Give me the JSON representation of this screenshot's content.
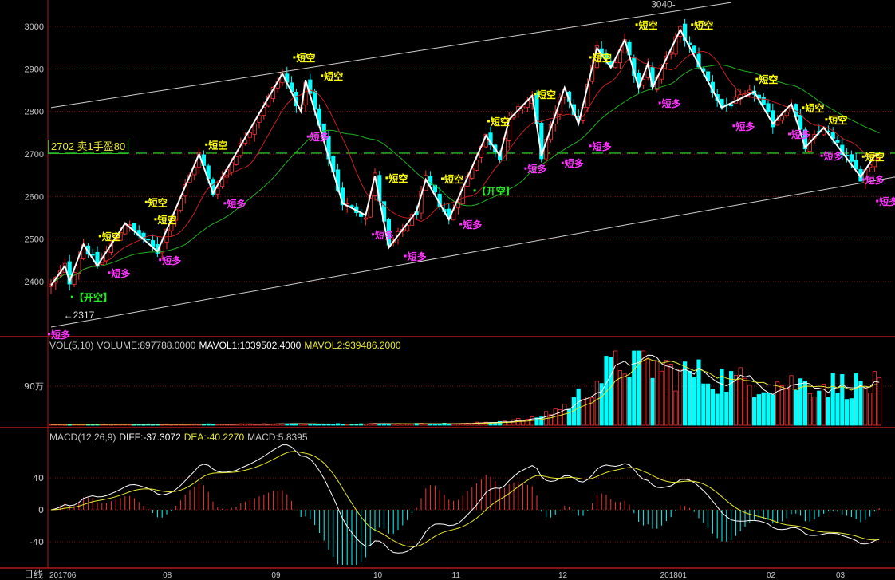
{
  "chart_data": [
    {
      "type": "candlestick",
      "period_label": "日线",
      "y_ticks": [
        3000,
        2900,
        2800,
        2700,
        2600,
        2500,
        2400
      ],
      "ylim": [
        2290,
        3060
      ],
      "x_ticks": [
        {
          "label": "201706",
          "index": 0
        },
        {
          "label": "08",
          "index": 24.5
        },
        {
          "label": "09",
          "index": 48
        },
        {
          "label": "10",
          "index": 70
        },
        {
          "label": "11",
          "index": 87
        },
        {
          "label": "12",
          "index": 110
        },
        {
          "label": "201801",
          "index": 132
        },
        {
          "label": "02",
          "index": 155
        },
        {
          "label": "03",
          "index": 170
        }
      ],
      "bar_count": 180,
      "zigzag_pivots": [
        [
          0,
          2391
        ],
        [
          3,
          2437
        ],
        [
          4,
          2400
        ],
        [
          7,
          2488
        ],
        [
          10,
          2437
        ],
        [
          16,
          2537
        ],
        [
          23,
          2471
        ],
        [
          32,
          2700
        ],
        [
          35,
          2608
        ],
        [
          50,
          2889
        ],
        [
          54,
          2800
        ],
        [
          55,
          2874
        ],
        [
          63,
          2584
        ],
        [
          68,
          2556
        ],
        [
          70,
          2649
        ],
        [
          73,
          2480
        ],
        [
          79,
          2565
        ],
        [
          81,
          2640
        ],
        [
          86,
          2546
        ],
        [
          94,
          2743
        ],
        [
          97,
          2696
        ],
        [
          99,
          2781
        ],
        [
          104,
          2837
        ],
        [
          106,
          2696
        ],
        [
          111,
          2856
        ],
        [
          114,
          2771
        ],
        [
          118,
          2949
        ],
        [
          121,
          2903
        ],
        [
          124,
          2968
        ],
        [
          127,
          2856
        ],
        [
          129,
          2912
        ],
        [
          130,
          2856
        ],
        [
          136,
          2992
        ],
        [
          145,
          2809
        ],
        [
          152,
          2846
        ],
        [
          156,
          2771
        ],
        [
          160,
          2818
        ],
        [
          163,
          2715
        ],
        [
          167,
          2762
        ],
        [
          175,
          2646
        ],
        [
          178,
          2696
        ],
        [
          179,
          2700
        ]
      ],
      "channel_upper": [
        [
          0,
          2809
        ],
        [
          147,
          3056
        ]
      ],
      "channel_lower": [
        [
          0,
          2293
        ],
        [
          183,
          2647
        ]
      ],
      "high_mark": {
        "label": "3040",
        "index": 136,
        "price": 3040
      },
      "low_mark": {
        "label": "←2317",
        "index": 2,
        "price": 2317
      },
      "position_line": {
        "price": 2702,
        "label": "2702 卖1手盈80",
        "color": "#22c022"
      },
      "signals": [
        {
          "text": "短空",
          "type": "short",
          "index": 53,
          "price": 2927
        },
        {
          "text": "短空",
          "type": "short",
          "index": 59,
          "price": 2884
        },
        {
          "text": "短空",
          "type": "short",
          "index": 34,
          "price": 2722
        },
        {
          "text": "短空",
          "type": "short",
          "index": 73,
          "price": 2644
        },
        {
          "text": "短空",
          "type": "short",
          "index": 21,
          "price": 2587
        },
        {
          "text": "短空",
          "type": "short",
          "index": 85,
          "price": 2642
        },
        {
          "text": "短空",
          "type": "short",
          "index": 23,
          "price": 2571
        },
        {
          "text": "短空",
          "type": "short",
          "index": 11,
          "price": 2507
        },
        {
          "text": "短空",
          "type": "short",
          "index": 95,
          "price": 2777
        },
        {
          "text": "短空",
          "type": "short",
          "index": 105,
          "price": 2841
        },
        {
          "text": "短空",
          "type": "short",
          "index": 117,
          "price": 2927
        },
        {
          "text": "短空",
          "type": "short",
          "index": 127,
          "price": 3004
        },
        {
          "text": "短空",
          "type": "short",
          "index": 139,
          "price": 3004
        },
        {
          "text": "短空",
          "type": "short",
          "index": 153,
          "price": 2876
        },
        {
          "text": "短空",
          "type": "short",
          "index": 163,
          "price": 2809
        },
        {
          "text": "短空",
          "type": "short",
          "index": 168,
          "price": 2781
        },
        {
          "text": "短空",
          "type": "short",
          "index": 176,
          "price": 2694
        },
        {
          "text": "短多",
          "type": "long",
          "index": 56,
          "price": 2741
        },
        {
          "text": "短多",
          "type": "long",
          "index": 38,
          "price": 2584
        },
        {
          "text": "短多",
          "type": "long",
          "index": 70,
          "price": 2511
        },
        {
          "text": "短多",
          "type": "long",
          "index": 77,
          "price": 2460
        },
        {
          "text": "短多",
          "type": "long",
          "index": 89,
          "price": 2535
        },
        {
          "text": "短多",
          "type": "long",
          "index": 13,
          "price": 2421
        },
        {
          "text": "短多",
          "type": "long",
          "index": 24,
          "price": 2451
        },
        {
          "text": "短多",
          "type": "long",
          "index": 103,
          "price": 2666
        },
        {
          "text": "短多",
          "type": "long",
          "index": 111,
          "price": 2679
        },
        {
          "text": "短多",
          "type": "long",
          "index": 117,
          "price": 2719
        },
        {
          "text": "短多",
          "type": "long",
          "index": 132,
          "price": 2820
        },
        {
          "text": "短多",
          "type": "long",
          "index": 148,
          "price": 2766
        },
        {
          "text": "短多",
          "type": "long",
          "index": 160,
          "price": 2747
        },
        {
          "text": "短多",
          "type": "long",
          "index": 167,
          "price": 2696
        },
        {
          "text": "短多",
          "type": "long",
          "index": 176,
          "price": 2640
        },
        {
          "text": "短多",
          "type": "long",
          "index": 179,
          "price": 2638
        },
        {
          "text": "短多",
          "type": "long",
          "index": 0,
          "price": 2301
        },
        {
          "text": "【开空】",
          "type": "open",
          "index": 5,
          "price": 2364
        },
        {
          "text": "【开空】",
          "type": "open",
          "index": 92,
          "price": 2614
        }
      ],
      "colors": {
        "up": "#ff3232",
        "down": "#00ffff",
        "zigzag": "#ffffff",
        "ma_short": "#c81e1e",
        "ma_long": "#22b022",
        "short": "#ffff00",
        "long": "#ff33ff",
        "open": "#22ee22"
      }
    },
    {
      "type": "bar",
      "name": "VOL(5,10)",
      "y_ticks": [
        {
          "label": "90万",
          "value": 900000
        }
      ],
      "volume_profile": [
        [
          0,
          20000
        ],
        [
          90,
          40000
        ],
        [
          104,
          150000
        ],
        [
          112,
          500000
        ],
        [
          118,
          1100000
        ],
        [
          124,
          1600000
        ],
        [
          134,
          1300000
        ],
        [
          150,
          1050000
        ],
        [
          179,
          950000
        ]
      ],
      "legend": {
        "title": "VOL(5,10)",
        "volume": "VOLUME:897788.0000",
        "mavol1": "MAVOL1:1039502.4000",
        "mavol2": "MAVOL2:939486.2000"
      }
    },
    {
      "type": "bar+line",
      "name": "MACD(12,26,9)",
      "y_ticks": [
        40,
        0,
        -40
      ],
      "legend": {
        "title": "MACD(12,26,9)",
        "diff": "DIFF:-37.3072",
        "dea": "DEA:-40.2270",
        "macd": "MACD:5.8395"
      }
    }
  ]
}
